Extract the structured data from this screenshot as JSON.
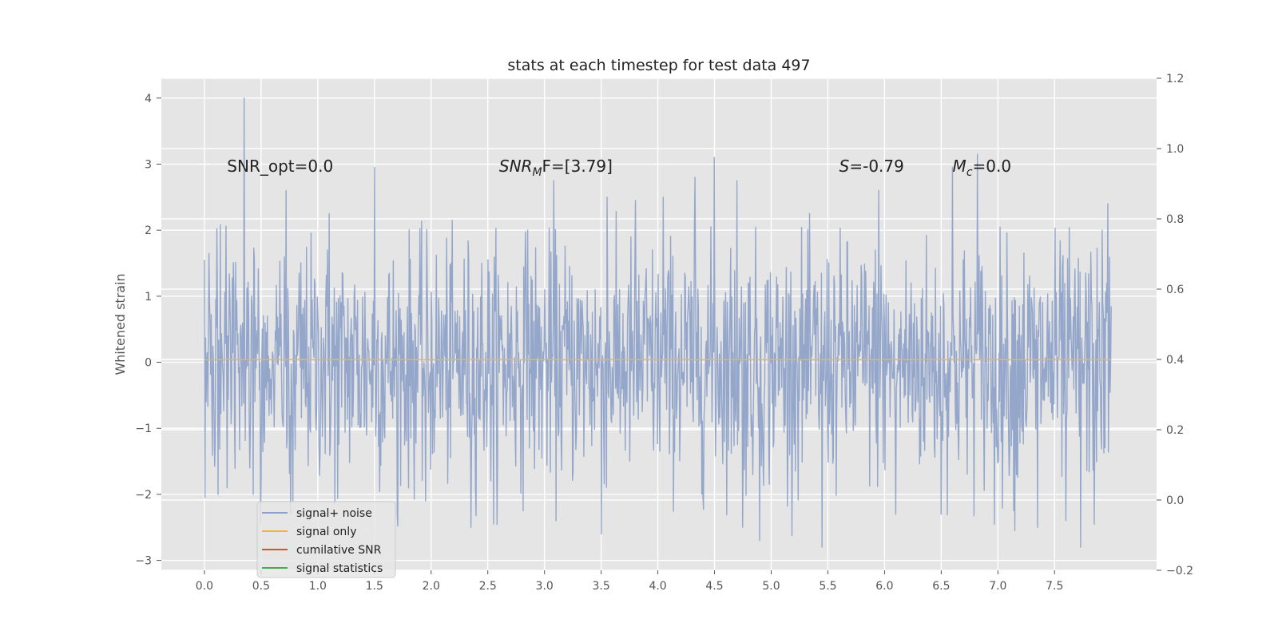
{
  "chart_data": {
    "type": "line",
    "title": "stats at each timestep for test data 497",
    "ylabel": "Whitened strain",
    "xlabel": "",
    "xlim": [
      -0.38,
      8.4
    ],
    "ylim": [
      -3.15,
      4.3
    ],
    "y2lim": [
      -0.2,
      1.2
    ],
    "xticks": [
      "0.0",
      "0.5",
      "1.0",
      "1.5",
      "2.0",
      "2.5",
      "3.0",
      "3.5",
      "4.0",
      "4.5",
      "5.0",
      "5.5",
      "6.0",
      "6.5",
      "7.0",
      "7.5"
    ],
    "yticks": [
      "4",
      "3",
      "2",
      "1",
      "0",
      "−1",
      "−2",
      "−3"
    ],
    "y2ticks": [
      "1.2",
      "1.0",
      "0.8",
      "0.6",
      "0.4",
      "0.2",
      "0.0",
      "−0.2"
    ],
    "grid": true,
    "legend_position": "lower-left",
    "annotations": [
      {
        "name": "snr-opt",
        "text": "SNR_opt=0.0",
        "x": 0.2,
        "y_frac": 0.81
      },
      {
        "name": "snr-mf-label",
        "sym": "SNR",
        "sub": "M",
        "tail": "F=[3.79]",
        "x": 2.6,
        "y_frac": 0.81
      },
      {
        "name": "s-stat",
        "sym": "S",
        "tail": "=-0.79",
        "x": 5.6,
        "y_frac": 0.81
      },
      {
        "name": "mc-stat",
        "sym": "M",
        "sub": "c",
        "tail": "=0.0",
        "x": 6.6,
        "y_frac": 0.81
      }
    ],
    "series": [
      {
        "name": "signal+ noise",
        "color": "#8da2c9",
        "x_range": [
          0.0,
          8.0
        ],
        "sample_count": 1600,
        "peaks": [
          [
            0.0,
            1.55
          ],
          [
            0.12,
            2.15
          ],
          [
            0.12,
            -2.0
          ],
          [
            0.2,
            -1.9
          ],
          [
            0.35,
            4.0
          ],
          [
            0.43,
            -2.0
          ],
          [
            0.5,
            -1.8
          ],
          [
            0.72,
            2.6
          ],
          [
            0.78,
            -2.1
          ],
          [
            1.1,
            2.25
          ],
          [
            1.15,
            -2.15
          ],
          [
            1.5,
            2.95
          ],
          [
            1.7,
            -2.3
          ],
          [
            1.95,
            -2.1
          ],
          [
            2.35,
            -2.5
          ],
          [
            2.55,
            -2.45
          ],
          [
            2.85,
            2.0
          ],
          [
            3.08,
            2.75
          ],
          [
            3.1,
            -2.4
          ],
          [
            3.5,
            -2.6
          ],
          [
            3.55,
            2.5
          ],
          [
            3.8,
            2.45
          ],
          [
            4.05,
            2.5
          ],
          [
            4.33,
            2.8
          ],
          [
            4.5,
            3.1
          ],
          [
            4.7,
            2.75
          ],
          [
            4.75,
            -2.5
          ],
          [
            4.9,
            -2.7
          ],
          [
            5.45,
            -2.8
          ],
          [
            5.95,
            2.6
          ],
          [
            6.1,
            -2.3
          ],
          [
            6.5,
            -2.3
          ],
          [
            6.6,
            2.95
          ],
          [
            6.82,
            3.15
          ],
          [
            6.97,
            -2.45
          ],
          [
            7.15,
            -2.55
          ],
          [
            7.35,
            -2.5
          ],
          [
            7.6,
            -2.4
          ],
          [
            7.73,
            -2.8
          ],
          [
            7.85,
            -2.45
          ],
          [
            7.97,
            2.4
          ]
        ],
        "spread": 0.9
      },
      {
        "name": "signal only",
        "color": "#f0b642",
        "x_range": [
          0.0,
          8.0
        ],
        "values": [
          0.04,
          0.04
        ]
      },
      {
        "name": "cumilative SNR",
        "color": "#e24a33",
        "values": []
      },
      {
        "name": "signal statistics",
        "color": "#4ca65a",
        "values": []
      }
    ],
    "ghost_legend_text": "signal+ noise"
  }
}
